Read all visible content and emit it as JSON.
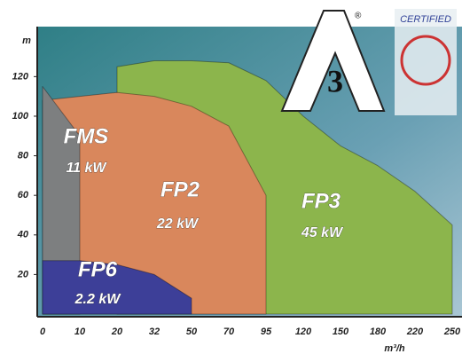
{
  "chart_data": {
    "type": "area",
    "y_label": "m",
    "x_label": "m³/h",
    "categories": [
      0,
      10,
      20,
      32,
      50,
      70,
      95,
      120,
      150,
      180,
      220,
      250
    ],
    "ylim": [
      0,
      145
    ],
    "yticks": [
      20,
      40,
      60,
      80,
      100,
      120
    ],
    "series": [
      {
        "name": "FP3",
        "power": "45 kW",
        "color": "#8cb54c",
        "values": [
          null,
          null,
          125,
          128,
          128,
          127,
          118,
          100,
          85,
          75,
          62,
          45
        ]
      },
      {
        "name": "FP2",
        "power": "22 kW",
        "color": "#d9875c",
        "values": [
          108,
          110,
          112,
          110,
          105,
          95,
          60,
          null,
          null,
          null,
          null,
          null
        ]
      },
      {
        "name": "FMS",
        "power": "11 kW",
        "color": "#7d7f80",
        "values": [
          115,
          90,
          null,
          null,
          null,
          null,
          null,
          null,
          null,
          null,
          null,
          null
        ]
      },
      {
        "name": "FP6",
        "power": "2.2 kW",
        "color": "#3d3f98",
        "values": [
          27,
          27,
          25,
          20,
          8,
          null,
          null,
          null,
          null,
          null,
          null,
          null
        ]
      }
    ],
    "logo": {
      "letter": "A",
      "number": "3",
      "mark": "®",
      "badge": "CERTIFIED"
    }
  }
}
